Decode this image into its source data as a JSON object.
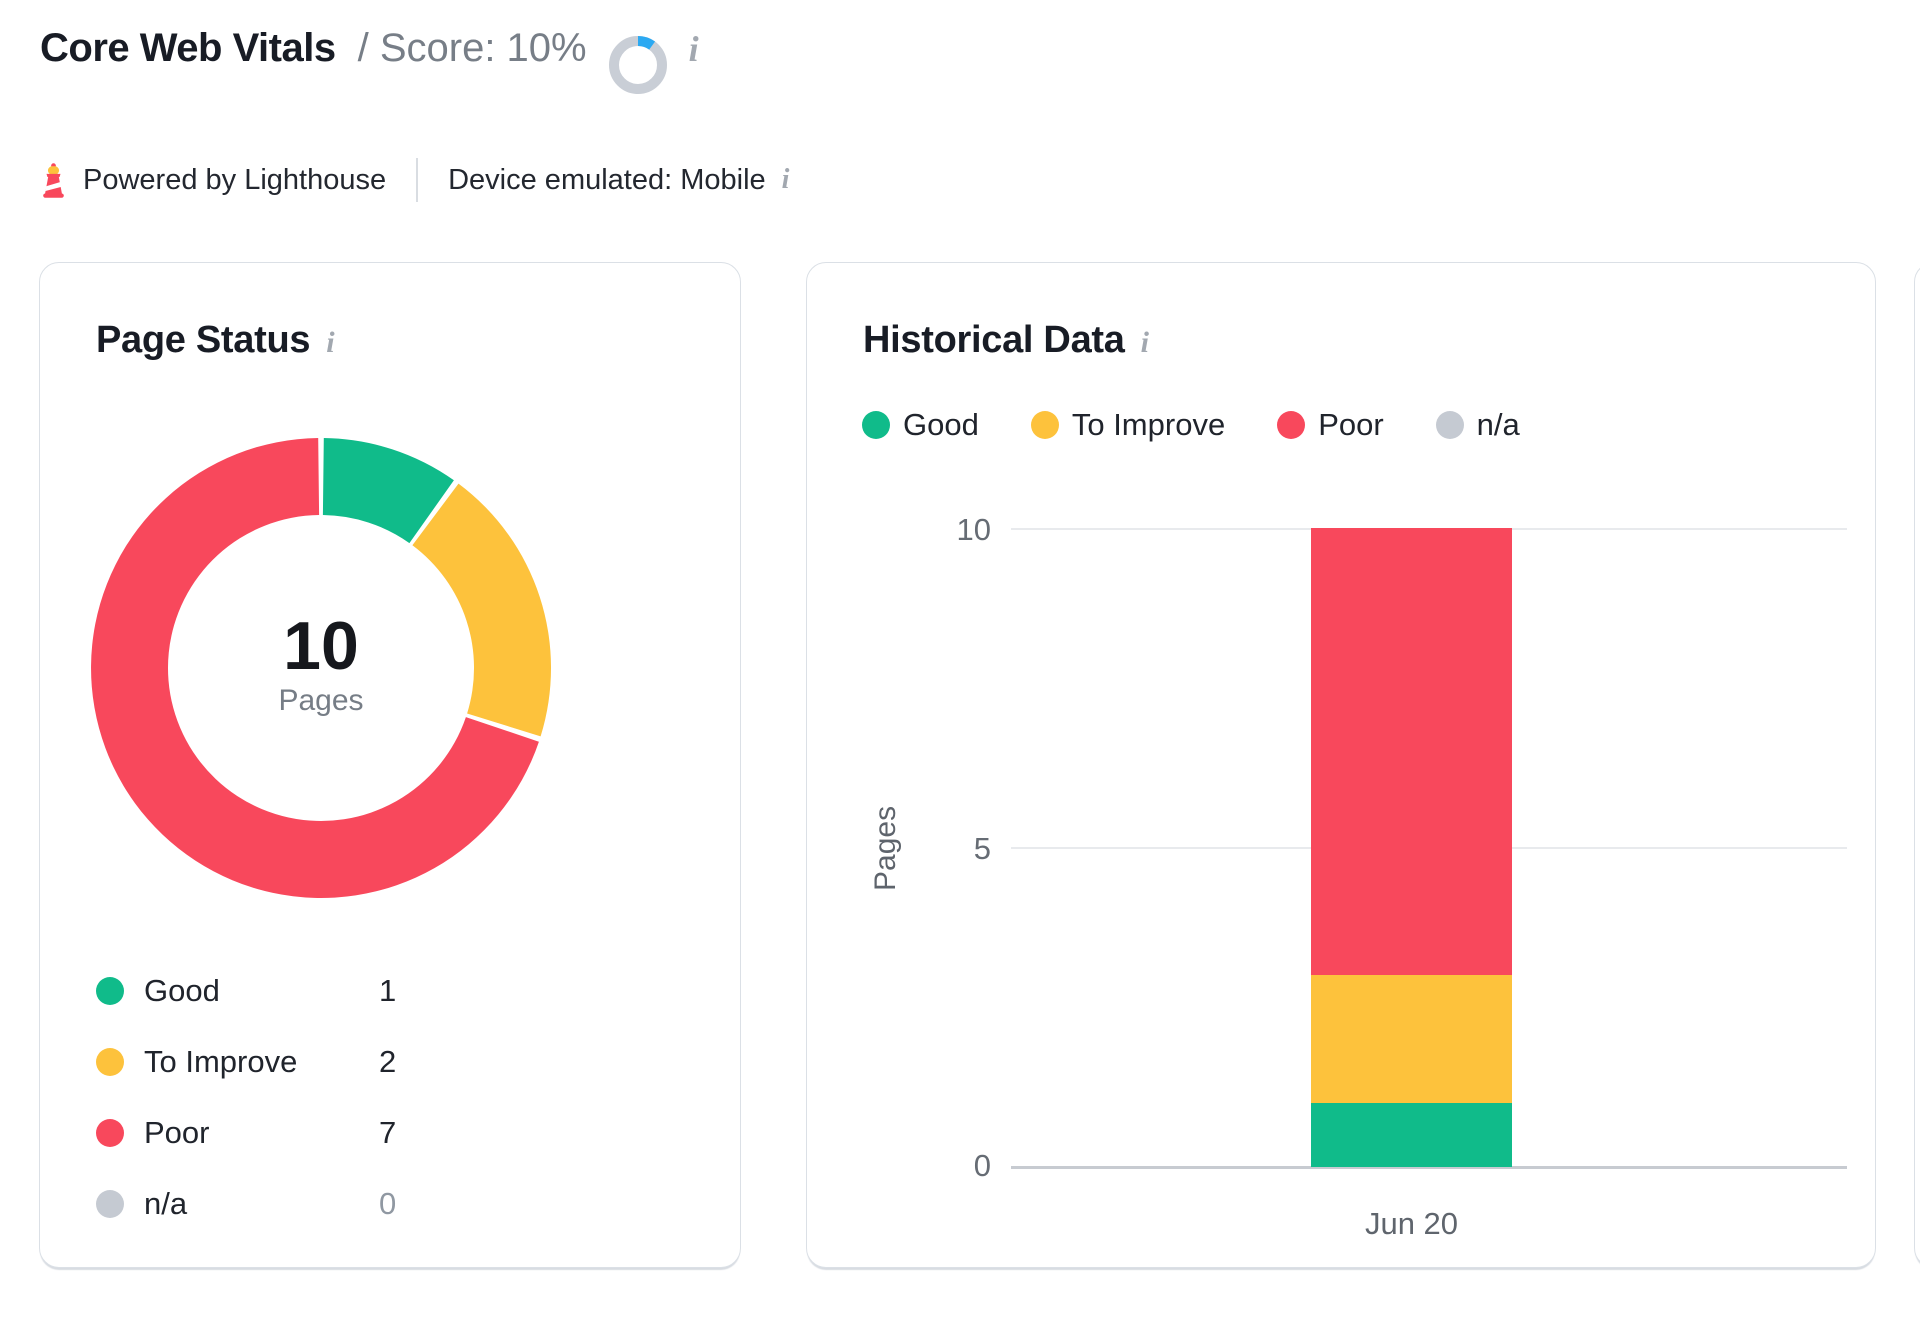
{
  "header": {
    "title": "Core Web Vitals",
    "separator": "/",
    "score_label": "Score: 10%",
    "score_percent": 10,
    "info_icon": "i"
  },
  "subheader": {
    "powered_by": "Powered by Lighthouse",
    "device": "Device emulated: Mobile",
    "info_icon": "i"
  },
  "colors": {
    "good": "#10bb8a",
    "to_improve": "#fdc23c",
    "poor": "#f8485c",
    "na": "#c5cad2",
    "score_ring_track": "#c9ced6",
    "score_ring_progress": "#2ba9f2"
  },
  "page_status": {
    "title": "Page Status",
    "info_icon": "i",
    "center_value": "10",
    "center_label": "Pages",
    "legend": [
      {
        "label": "Good",
        "value": "1",
        "color": "#10bb8a"
      },
      {
        "label": "To Improve",
        "value": "2",
        "color": "#fdc23c"
      },
      {
        "label": "Poor",
        "value": "7",
        "color": "#f8485c"
      },
      {
        "label": "n/a",
        "value": "0",
        "color": "#c5cad2"
      }
    ]
  },
  "historical": {
    "title": "Historical Data",
    "info_icon": "i",
    "legend": [
      {
        "label": "Good",
        "color": "#10bb8a"
      },
      {
        "label": "To Improve",
        "color": "#fdc23c"
      },
      {
        "label": "Poor",
        "color": "#f8485c"
      },
      {
        "label": "n/a",
        "color": "#c5cad2"
      }
    ],
    "ylabel": "Pages",
    "yticks": [
      "10",
      "5",
      "0"
    ],
    "x_label": "Jun 20"
  },
  "chart_data": [
    {
      "type": "pie",
      "style": "donut",
      "title": "Page Status",
      "labels": [
        "Good",
        "To Improve",
        "Poor",
        "n/a"
      ],
      "values": [
        1,
        2,
        7,
        0
      ],
      "colors": [
        "#10bb8a",
        "#fdc23c",
        "#f8485c",
        "#c5cad2"
      ],
      "center_text": "10 Pages",
      "start_angle_deg": 0,
      "direction": "clockwise"
    },
    {
      "type": "bar",
      "stacked": true,
      "title": "Historical Data",
      "categories": [
        "Jun 20"
      ],
      "series": [
        {
          "name": "Good",
          "values": [
            1
          ],
          "color": "#10bb8a"
        },
        {
          "name": "To Improve",
          "values": [
            2
          ],
          "color": "#fdc23c"
        },
        {
          "name": "Poor",
          "values": [
            7
          ],
          "color": "#f8485c"
        },
        {
          "name": "n/a",
          "values": [
            0
          ],
          "color": "#c5cad2"
        }
      ],
      "xlabel": "",
      "ylabel": "Pages",
      "ylim": [
        0,
        10
      ],
      "yticks": [
        0,
        5,
        10
      ],
      "grid": true,
      "legend_position": "top"
    }
  ]
}
